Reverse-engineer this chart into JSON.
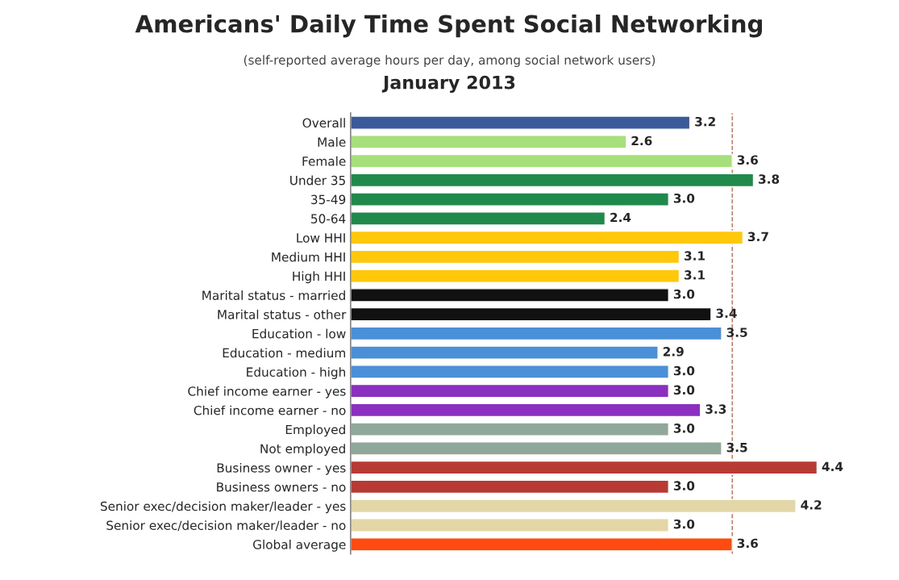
{
  "chart_data": {
    "type": "bar",
    "orientation": "horizontal",
    "title": "Americans' Daily Time Spent Social Networking",
    "subtitle": "(self-reported average hours per day, among social network users)",
    "annotations": [
      "January 2013"
    ],
    "categories": [
      "Overall",
      "Male",
      "Female",
      "Under 35",
      "35-49",
      "50-64",
      "Low HHI",
      "Medium HHI",
      "High HHI",
      "Marital status - married",
      "Marital status - other",
      "Education - low",
      "Education - medium",
      "Education - high",
      "Chief income earner - yes",
      "Chief income earner - no",
      "Employed",
      "Not employed",
      "Business owner - yes",
      "Business owners - no",
      "Senior exec/decision maker/leader - yes",
      "Senior exec/decision maker/leader - no",
      "Global average"
    ],
    "values": [
      3.2,
      2.6,
      3.6,
      3.8,
      3.0,
      2.4,
      3.7,
      3.1,
      3.1,
      3.0,
      3.4,
      3.5,
      2.9,
      3.0,
      3.0,
      3.3,
      3.0,
      3.5,
      4.4,
      3.0,
      4.2,
      3.0,
      3.6
    ],
    "colors": [
      "#3b5a9a",
      "#a6e07a",
      "#a6e07a",
      "#1f8a4c",
      "#1f8a4c",
      "#1f8a4c",
      "#ffc80a",
      "#ffc80a",
      "#ffc80a",
      "#111111",
      "#111111",
      "#4a90d9",
      "#4a90d9",
      "#4a90d9",
      "#8a2fc0",
      "#8a2fc0",
      "#8fa89a",
      "#8fa89a",
      "#b83a35",
      "#b83a35",
      "#e3d7a8",
      "#e3d7a8",
      "#ff4a10"
    ],
    "ref_lines": [
      {
        "axis": "x",
        "value": 3.6,
        "color": "#e0603a",
        "line_style": "dashed"
      }
    ],
    "value_labels": [
      "3.2",
      "2.6",
      "3.6",
      "3.8",
      "3.0",
      "2.4",
      "3.7",
      "3.1",
      "3.1",
      "3.0",
      "3.4",
      "3.5",
      "2.9",
      "3.0",
      "3.0",
      "3.3",
      "3.0",
      "3.5",
      "4.4",
      "3.0",
      "4.2",
      "3.0",
      "3.6"
    ],
    "tick_labels": "y",
    "grid": false,
    "legend": false
  }
}
